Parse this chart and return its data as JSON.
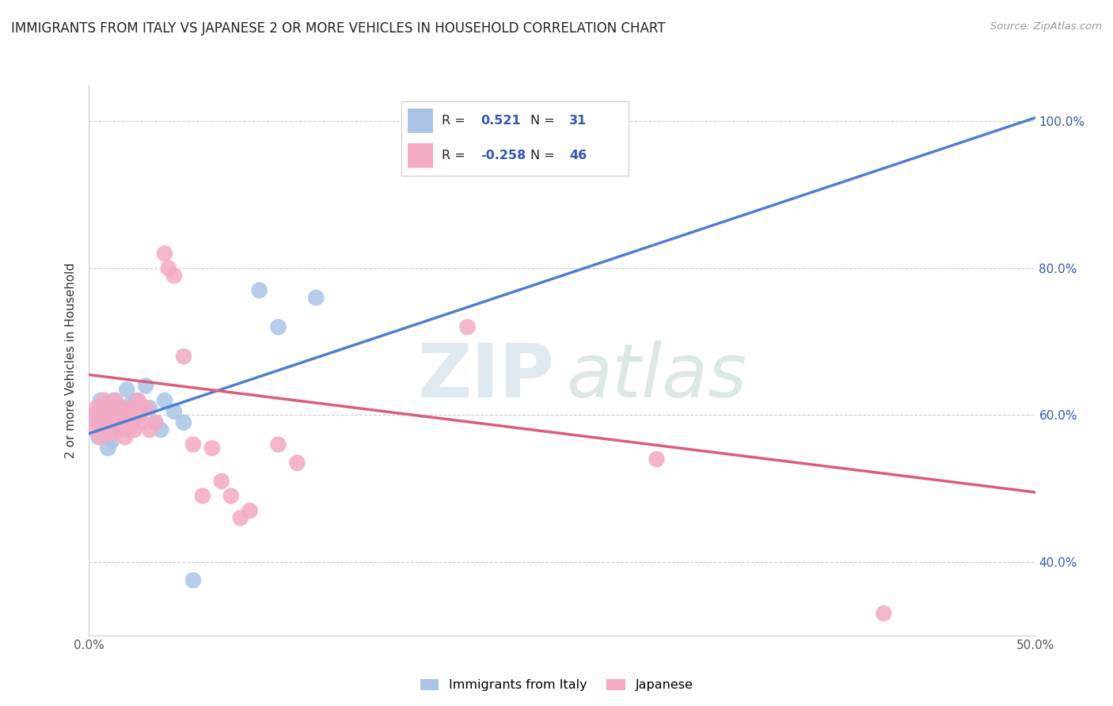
{
  "title": "IMMIGRANTS FROM ITALY VS JAPANESE 2 OR MORE VEHICLES IN HOUSEHOLD CORRELATION CHART",
  "source": "Source: ZipAtlas.com",
  "ylabel": "2 or more Vehicles in Household",
  "xlim": [
    0.0,
    0.5
  ],
  "ylim": [
    0.3,
    1.05
  ],
  "xticks": [
    0.0,
    0.1,
    0.2,
    0.3,
    0.4,
    0.5
  ],
  "yticks": [
    0.4,
    0.6,
    0.8,
    1.0
  ],
  "xticklabels": [
    "0.0%",
    "",
    "",
    "",
    "",
    "50.0%"
  ],
  "yticklabels": [
    "40.0%",
    "60.0%",
    "80.0%",
    "100.0%"
  ],
  "italy_color": "#aac4e8",
  "japanese_color": "#f4aac4",
  "italy_R": 0.521,
  "italy_N": 31,
  "japanese_R": -0.258,
  "japanese_N": 46,
  "italy_line_color": "#4a7fd4",
  "japanese_line_color": "#e05a7a",
  "blue_text": "#3355bb",
  "italy_scatter": [
    [
      0.003,
      0.595
    ],
    [
      0.005,
      0.57
    ],
    [
      0.006,
      0.62
    ],
    [
      0.007,
      0.59
    ],
    [
      0.008,
      0.61
    ],
    [
      0.009,
      0.58
    ],
    [
      0.01,
      0.555
    ],
    [
      0.011,
      0.6
    ],
    [
      0.012,
      0.565
    ],
    [
      0.013,
      0.62
    ],
    [
      0.014,
      0.6
    ],
    [
      0.015,
      0.58
    ],
    [
      0.016,
      0.595
    ],
    [
      0.017,
      0.61
    ],
    [
      0.018,
      0.59
    ],
    [
      0.02,
      0.635
    ],
    [
      0.022,
      0.615
    ],
    [
      0.024,
      0.595
    ],
    [
      0.025,
      0.62
    ],
    [
      0.027,
      0.6
    ],
    [
      0.03,
      0.64
    ],
    [
      0.032,
      0.61
    ],
    [
      0.035,
      0.59
    ],
    [
      0.038,
      0.58
    ],
    [
      0.04,
      0.62
    ],
    [
      0.045,
      0.605
    ],
    [
      0.05,
      0.59
    ],
    [
      0.055,
      0.375
    ],
    [
      0.09,
      0.77
    ],
    [
      0.1,
      0.72
    ],
    [
      0.12,
      0.76
    ]
  ],
  "japanese_scatter": [
    [
      0.002,
      0.6
    ],
    [
      0.003,
      0.58
    ],
    [
      0.004,
      0.61
    ],
    [
      0.005,
      0.59
    ],
    [
      0.006,
      0.57
    ],
    [
      0.007,
      0.6
    ],
    [
      0.008,
      0.62
    ],
    [
      0.009,
      0.58
    ],
    [
      0.01,
      0.61
    ],
    [
      0.011,
      0.595
    ],
    [
      0.012,
      0.575
    ],
    [
      0.013,
      0.6
    ],
    [
      0.014,
      0.62
    ],
    [
      0.015,
      0.58
    ],
    [
      0.016,
      0.595
    ],
    [
      0.017,
      0.61
    ],
    [
      0.018,
      0.59
    ],
    [
      0.019,
      0.57
    ],
    [
      0.02,
      0.6
    ],
    [
      0.021,
      0.58
    ],
    [
      0.022,
      0.595
    ],
    [
      0.023,
      0.61
    ],
    [
      0.024,
      0.58
    ],
    [
      0.025,
      0.6
    ],
    [
      0.026,
      0.62
    ],
    [
      0.027,
      0.61
    ],
    [
      0.028,
      0.59
    ],
    [
      0.03,
      0.61
    ],
    [
      0.032,
      0.58
    ],
    [
      0.035,
      0.59
    ],
    [
      0.04,
      0.82
    ],
    [
      0.042,
      0.8
    ],
    [
      0.045,
      0.79
    ],
    [
      0.05,
      0.68
    ],
    [
      0.055,
      0.56
    ],
    [
      0.06,
      0.49
    ],
    [
      0.065,
      0.555
    ],
    [
      0.07,
      0.51
    ],
    [
      0.075,
      0.49
    ],
    [
      0.08,
      0.46
    ],
    [
      0.085,
      0.47
    ],
    [
      0.1,
      0.56
    ],
    [
      0.11,
      0.535
    ],
    [
      0.2,
      0.72
    ],
    [
      0.3,
      0.54
    ],
    [
      0.42,
      0.33
    ]
  ],
  "italy_line_endpoints": [
    [
      0.0,
      0.575
    ],
    [
      0.5,
      1.005
    ]
  ],
  "japanese_line_endpoints": [
    [
      0.0,
      0.655
    ],
    [
      0.5,
      0.495
    ]
  ]
}
